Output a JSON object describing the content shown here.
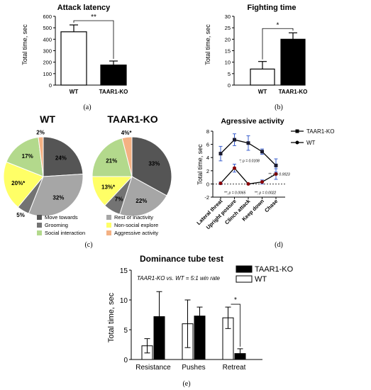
{
  "panel_labels": [
    "(a)",
    "(b)",
    "(c)",
    "(d)",
    "(e)"
  ],
  "chart_data": [
    {
      "id": "a",
      "type": "bar",
      "title": "Attack latency",
      "ylabel": "Total time, sec",
      "categories": [
        "WT",
        "TAAR1-KO"
      ],
      "values": [
        465,
        175
      ],
      "errors": [
        60,
        35
      ],
      "fill": [
        "#ffffff",
        "#000000"
      ],
      "ylim": [
        0,
        600
      ],
      "yticks": [
        0,
        100,
        200,
        300,
        400,
        500,
        600
      ],
      "significance": "**"
    },
    {
      "id": "b",
      "type": "bar",
      "title": "Fighting time",
      "ylabel": "Total time, sec",
      "categories": [
        "WT",
        "TAAR1-KO"
      ],
      "values": [
        7,
        20
      ],
      "errors": [
        3.3,
        2.8
      ],
      "fill": [
        "#ffffff",
        "#000000"
      ],
      "ylim": [
        0,
        30
      ],
      "yticks": [
        0,
        5,
        10,
        15,
        20,
        25,
        30
      ],
      "significance": "*"
    },
    {
      "id": "c1",
      "type": "pie",
      "title": "WT",
      "slices": [
        {
          "name": "Move towards",
          "value": 24,
          "label": "24%",
          "color": "#555555"
        },
        {
          "name": "Rest or inactivity",
          "value": 32,
          "label": "32%",
          "color": "#a6a6a6"
        },
        {
          "name": "Grooming",
          "value": 5,
          "label": "5%",
          "color": "#737373"
        },
        {
          "name": "Non-social explore",
          "value": 20,
          "label": "20%*",
          "color": "#ffff66"
        },
        {
          "name": "Social interaction",
          "value": 17,
          "label": "17%",
          "color": "#b3d98c"
        },
        {
          "name": "Aggressive activity",
          "value": 2,
          "label": "2%",
          "color": "#f4b183"
        }
      ]
    },
    {
      "id": "c2",
      "type": "pie",
      "title": "TAAR1-KO",
      "slices": [
        {
          "name": "Move towards",
          "value": 33,
          "label": "33%",
          "color": "#555555"
        },
        {
          "name": "Rest or inactivity",
          "value": 22,
          "label": "22%",
          "color": "#a6a6a6"
        },
        {
          "name": "Grooming",
          "value": 7,
          "label": "7%",
          "color": "#737373"
        },
        {
          "name": "Non-social explore",
          "value": 13,
          "label": "13%*",
          "color": "#ffff66"
        },
        {
          "name": "Social interaction",
          "value": 21,
          "label": "21%",
          "color": "#b3d98c"
        },
        {
          "name": "Aggressive activity",
          "value": 4,
          "label": "4%*",
          "color": "#f4b183"
        }
      ]
    },
    {
      "id": "c_legend",
      "type": "legend",
      "items": [
        {
          "name": "Move towards",
          "color": "#555555"
        },
        {
          "name": "Rest or inactivity",
          "color": "#a6a6a6"
        },
        {
          "name": "Grooming",
          "color": "#737373"
        },
        {
          "name": "Non-social explore",
          "color": "#ffff66"
        },
        {
          "name": "Social interaction",
          "color": "#b3d98c"
        },
        {
          "name": "Aggressive activity",
          "color": "#f4b183"
        }
      ]
    },
    {
      "id": "d",
      "type": "line",
      "title": "Agressive activity",
      "ylabel": "Total time, sec",
      "categories": [
        "Lateral threat",
        "Upright posture",
        "Clinch attack",
        "Keep down",
        "Chase"
      ],
      "ylim": [
        -2,
        8
      ],
      "yticks": [
        -2,
        0,
        2,
        4,
        6,
        8
      ],
      "series": [
        {
          "name": "TAAR1-KO",
          "values": [
            4.6,
            6.7,
            6.2,
            4.9,
            2.8
          ],
          "errors": [
            1.1,
            0.9,
            1.1,
            0.4,
            1.0
          ],
          "marker": "square"
        },
        {
          "name": "WT",
          "values": [
            0.1,
            2.4,
            0.0,
            0.3,
            1.5
          ],
          "errors": [
            0.2,
            0.6,
            0.1,
            0.3,
            0.8
          ],
          "marker": "circle"
        }
      ],
      "annotations": [
        {
          "text": "*; p = 0.0108",
          "x": 1.35,
          "y": 3.3
        },
        {
          "text": "**; p = 0.0065",
          "x": 0.25,
          "y": -1.5
        },
        {
          "text": "**; p = 0.0022",
          "x": 2.45,
          "y": -1.5
        },
        {
          "text": "**; p = 0.0023",
          "x": 3.45,
          "y": 1.3
        }
      ],
      "legend_position": "top-right"
    },
    {
      "id": "e",
      "type": "bar",
      "title": "Dominance tube test",
      "ylabel": "Total time, sec",
      "categories": [
        "Resistance",
        "Pushes",
        "Retreat"
      ],
      "ylim": [
        0,
        15
      ],
      "yticks": [
        0,
        5,
        10,
        15
      ],
      "series": [
        {
          "name": "WT",
          "values": [
            2.3,
            6.0,
            7.0
          ],
          "errors": [
            1.2,
            4.0,
            1.8
          ],
          "fill": "#ffffff"
        },
        {
          "name": "TAAR1-KO",
          "values": [
            7.2,
            7.3,
            1.0
          ],
          "errors": [
            4.2,
            1.5,
            0.8
          ],
          "fill": "#000000"
        }
      ],
      "annotation": "TAAR1-KO vs. WT = 5:1 win rate",
      "significance": "*",
      "legend_position": "top-right"
    }
  ]
}
